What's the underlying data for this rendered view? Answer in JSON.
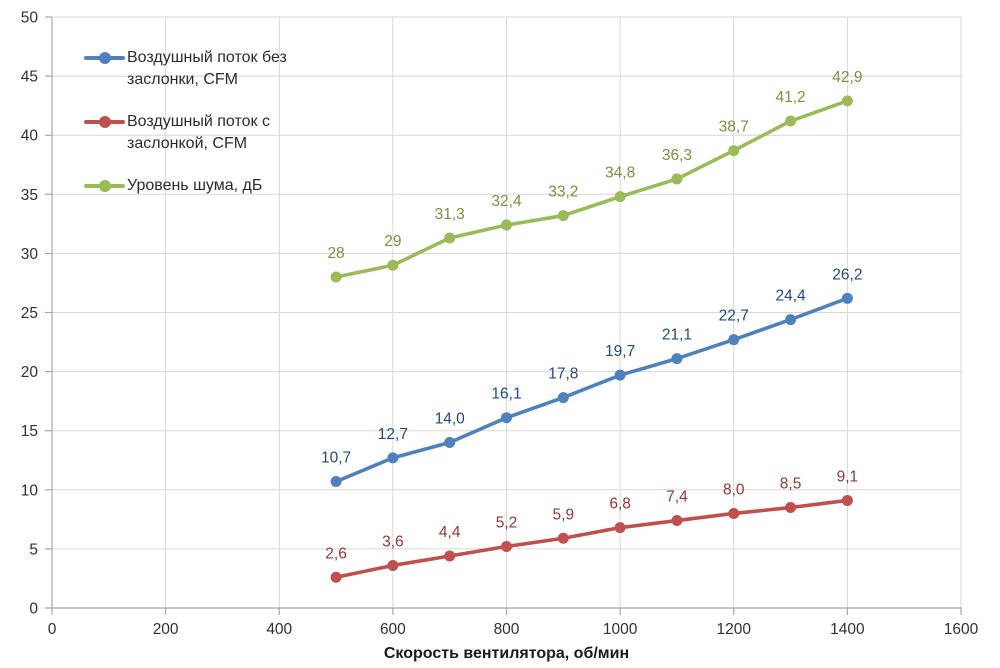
{
  "chart_data": {
    "type": "line",
    "x": [
      500,
      600,
      700,
      800,
      900,
      1000,
      1100,
      1200,
      1300,
      1400
    ],
    "series": [
      {
        "id": "airflow-no-damper",
        "name": "Воздушный поток без заслонки, CFM",
        "legend_lines": [
          "Воздушный поток без",
          "заслонки, CFM"
        ],
        "values": [
          10.7,
          12.7,
          14.0,
          16.1,
          17.8,
          19.7,
          21.1,
          22.7,
          24.4,
          26.2
        ],
        "labels": [
          "10,7",
          "12,7",
          "14,0",
          "16,1",
          "17,8",
          "19,7",
          "21,1",
          "22,7",
          "24,4",
          "26,2"
        ],
        "color": "#4F81BD",
        "label_color": "#1F497D"
      },
      {
        "id": "airflow-with-damper",
        "name": "Воздушный поток с заслонкой, CFM",
        "legend_lines": [
          "Воздушный поток с",
          "заслонкой, CFM"
        ],
        "values": [
          2.6,
          3.6,
          4.4,
          5.2,
          5.9,
          6.8,
          7.4,
          8.0,
          8.5,
          9.1
        ],
        "labels": [
          "2,6",
          "3,6",
          "4,4",
          "5,2",
          "5,9",
          "6,8",
          "7,4",
          "8,0",
          "8,5",
          "9,1"
        ],
        "color": "#C0504D",
        "label_color": "#943634"
      },
      {
        "id": "noise-level",
        "name": "Уровень шума, дБ",
        "legend_lines": [
          "Уровень шума, дБ"
        ],
        "values": [
          28,
          29,
          31.3,
          32.4,
          33.2,
          34.8,
          36.3,
          38.7,
          41.2,
          42.9
        ],
        "labels": [
          "28",
          "29",
          "31,3",
          "32,4",
          "33,2",
          "34,8",
          "36,3",
          "38,7",
          "41,2",
          "42,9"
        ],
        "color": "#9BBB59",
        "label_color": "#77933C"
      }
    ],
    "xlabel": "Скорость вентилятора, об/мин",
    "ylabel": "",
    "xlim": [
      0,
      1600
    ],
    "ylim": [
      0,
      50
    ],
    "x_ticks": [
      0,
      200,
      400,
      600,
      800,
      1000,
      1200,
      1400,
      1600
    ],
    "y_ticks": [
      0,
      5,
      10,
      15,
      20,
      25,
      30,
      35,
      40,
      45,
      50
    ],
    "grid": true,
    "legend_position": "top-left-inside"
  },
  "colors": {
    "background": "#FFFFFF",
    "gridline": "#D7D7D7",
    "axis": "#A6A6A6",
    "tick_label": "#303030"
  }
}
